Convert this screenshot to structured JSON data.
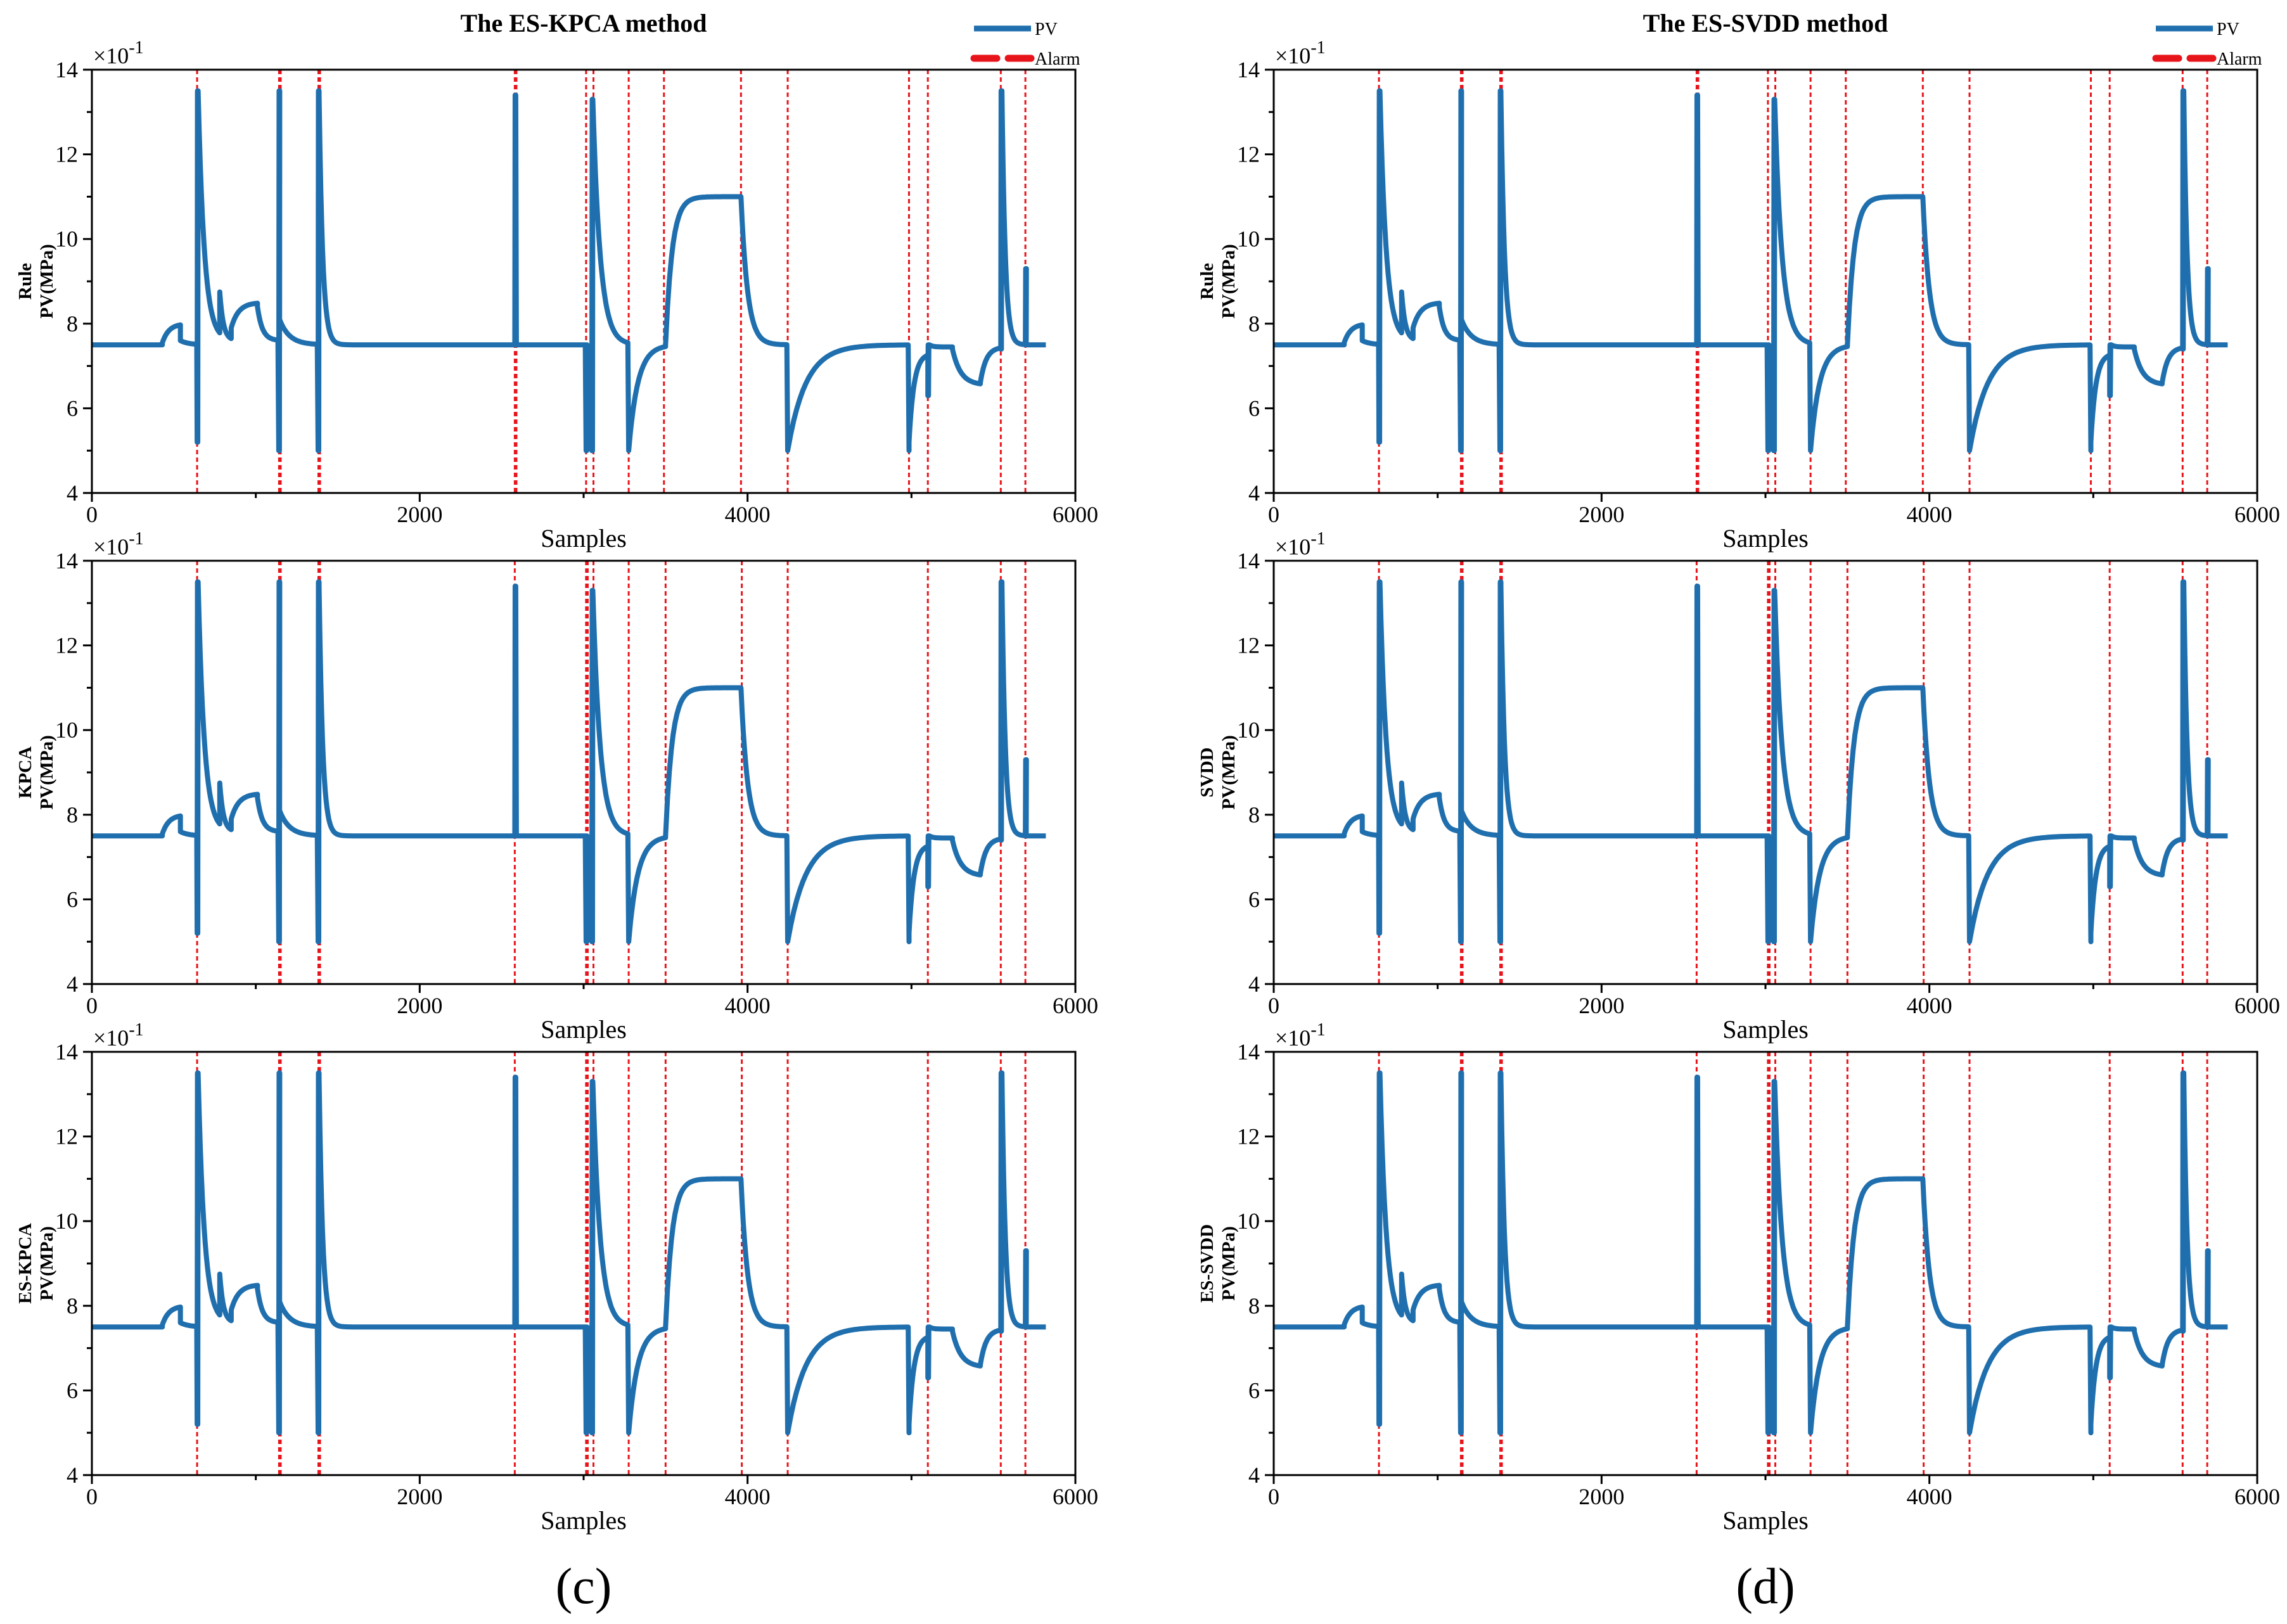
{
  "columns": [
    {
      "title": "The ES-KPCA method",
      "panel_label": "(c)",
      "method_labels": [
        "Rule",
        "KPCA",
        "ES-KPCA"
      ]
    },
    {
      "title": "The ES-SVDD method",
      "panel_label": "(d)",
      "method_labels": [
        "Rule",
        "SVDD",
        "ES-SVDD"
      ]
    }
  ],
  "ylabel_units": "PV(MPa)",
  "xlabel": "Samples",
  "exponent_label": "×10",
  "exponent_power": "-1",
  "legend": {
    "pv": "PV",
    "alarm": "Alarm"
  },
  "colors": {
    "pv": "#1f6fae",
    "alarm": "#e8141b",
    "axis": "#000000",
    "background": "#ffffff"
  },
  "chart_data": {
    "type": "line",
    "xlim": [
      0,
      6000
    ],
    "ylim": [
      4,
      14
    ],
    "xticks": [
      0,
      2000,
      4000,
      6000
    ],
    "yticks": [
      4,
      6,
      8,
      10,
      12,
      14
    ],
    "y_scale_note": "values shown ×10^-1",
    "grid": false,
    "legend_position": "top-right",
    "pv_segments": [
      {
        "type": "flat",
        "x0": 0,
        "x1": 430,
        "y": 7.5
      },
      {
        "type": "step",
        "x0": 430,
        "x1": 540,
        "y0": 7.55,
        "y1": 8.0,
        "k": 40
      },
      {
        "type": "decay",
        "x0": 540,
        "x1": 640,
        "y0": 7.6,
        "yinf": 7.5,
        "tau": 50
      },
      {
        "type": "spike",
        "x": 642,
        "ymin": 5.2,
        "ymax": 13.5
      },
      {
        "type": "decay",
        "x0": 648,
        "x1": 780,
        "y0": 13.5,
        "yinf": 7.6,
        "tau": 38
      },
      {
        "type": "jump",
        "x": 780,
        "y": 8.75
      },
      {
        "type": "decay",
        "x0": 780,
        "x1": 850,
        "y0": 8.75,
        "yinf": 7.6,
        "tau": 22
      },
      {
        "type": "step",
        "x0": 850,
        "x1": 1010,
        "y0": 7.9,
        "y1": 8.5,
        "k": 45
      },
      {
        "type": "decay",
        "x0": 1010,
        "x1": 1135,
        "y0": 8.4,
        "yinf": 7.6,
        "tau": 30
      },
      {
        "type": "spike",
        "x": 1140,
        "ymin": 5.0,
        "ymax": 13.5
      },
      {
        "type": "jump",
        "x": 1145,
        "y": 8.1
      },
      {
        "type": "decay",
        "x0": 1145,
        "x1": 1375,
        "y0": 8.1,
        "yinf": 7.5,
        "tau": 60
      },
      {
        "type": "spike",
        "x": 1380,
        "ymin": 5.0,
        "ymax": 13.5
      },
      {
        "type": "decay",
        "x0": 1386,
        "x1": 1600,
        "y0": 13.4,
        "yinf": 7.5,
        "tau": 22
      },
      {
        "type": "flat",
        "x0": 1600,
        "x1": 2578,
        "y": 7.5
      },
      {
        "type": "spike",
        "x": 2580,
        "ymin": 7.5,
        "ymax": 13.4
      },
      {
        "type": "flat",
        "x0": 2590,
        "x1": 3010,
        "y": 7.5
      },
      {
        "type": "spike",
        "x": 3015,
        "ymin": 5.0,
        "ymax": 7.5
      },
      {
        "type": "spike",
        "x": 3050,
        "ymin": 5.0,
        "ymax": 13.3
      },
      {
        "type": "decay",
        "x0": 3056,
        "x1": 3270,
        "y0": 13.3,
        "yinf": 7.5,
        "tau": 45
      },
      {
        "type": "jump",
        "x": 3275,
        "y": 5.0
      },
      {
        "type": "decay",
        "x0": 3275,
        "x1": 3500,
        "y0": 5.0,
        "yinf": 7.5,
        "tau": 55
      },
      {
        "type": "step",
        "x0": 3500,
        "x1": 3960,
        "y0": 7.5,
        "y1": 11.0,
        "k": 40
      },
      {
        "type": "jump",
        "x": 3960,
        "y": 11.0
      },
      {
        "type": "decay",
        "x0": 3960,
        "x1": 4240,
        "y0": 11.0,
        "yinf": 7.5,
        "tau": 40
      },
      {
        "type": "jump",
        "x": 4245,
        "y": 5.0
      },
      {
        "type": "decay",
        "x0": 4245,
        "x1": 4980,
        "y0": 5.0,
        "yinf": 7.5,
        "tau": 110
      },
      {
        "type": "jump",
        "x": 4985,
        "y": 5.0
      },
      {
        "type": "step",
        "x0": 4985,
        "x1": 5100,
        "y0": 5.2,
        "y1": 7.3,
        "k": 30
      },
      {
        "type": "spike",
        "x": 5100,
        "ymin": 6.3,
        "ymax": 7.5
      },
      {
        "type": "step",
        "x0": 5110,
        "x1": 5250,
        "y0": 7.5,
        "y1": 7.45,
        "k": 20
      },
      {
        "type": "step",
        "x0": 5250,
        "x1": 5420,
        "y0": 7.4,
        "y1": 6.55,
        "k": 50
      },
      {
        "type": "step",
        "x0": 5420,
        "x1": 5540,
        "y0": 6.6,
        "y1": 7.45,
        "k": 35
      },
      {
        "type": "spike",
        "x": 5545,
        "ymin": 7.4,
        "ymax": 13.5
      },
      {
        "type": "decay",
        "x0": 5552,
        "x1": 5690,
        "y0": 13.5,
        "yinf": 7.5,
        "tau": 20
      },
      {
        "type": "spike",
        "x": 5695,
        "ymin": 7.5,
        "ymax": 9.3
      },
      {
        "type": "flat",
        "x0": 5700,
        "x1": 5820,
        "y": 7.5
      }
    ],
    "alarms": [
      {
        "method": "Rule",
        "x": [
          642,
          1142,
          1152,
          1382,
          1392,
          2580,
          2590,
          3015,
          3060,
          3275,
          3490,
          3960,
          4245,
          4985,
          5100,
          5545,
          5695
        ]
      },
      {
        "method": "KPCA",
        "x": [
          642,
          1142,
          1152,
          1382,
          1392,
          2580,
          3015,
          3025,
          3060,
          3275,
          3500,
          3965,
          4245,
          5100,
          5545,
          5695
        ]
      },
      {
        "method": "ES-KPCA",
        "x": [
          642,
          1142,
          1152,
          1382,
          1392,
          2580,
          3015,
          3025,
          3060,
          3275,
          3500,
          3965,
          4245,
          5100,
          5545,
          5695
        ]
      },
      {
        "method": "Rule",
        "x": [
          642,
          1142,
          1152,
          1382,
          1392,
          2580,
          2590,
          3015,
          3060,
          3275,
          3490,
          3960,
          4245,
          4985,
          5100,
          5545,
          5695
        ]
      },
      {
        "method": "SVDD",
        "x": [
          642,
          1142,
          1152,
          1382,
          1392,
          2580,
          3015,
          3025,
          3060,
          3275,
          3500,
          3965,
          4245,
          5100,
          5545,
          5695
        ]
      },
      {
        "method": "ES-SVDD",
        "x": [
          642,
          1142,
          1152,
          1382,
          1392,
          2580,
          3015,
          3025,
          3060,
          3275,
          3500,
          3965,
          4245,
          5100,
          5545,
          5695
        ]
      }
    ]
  }
}
